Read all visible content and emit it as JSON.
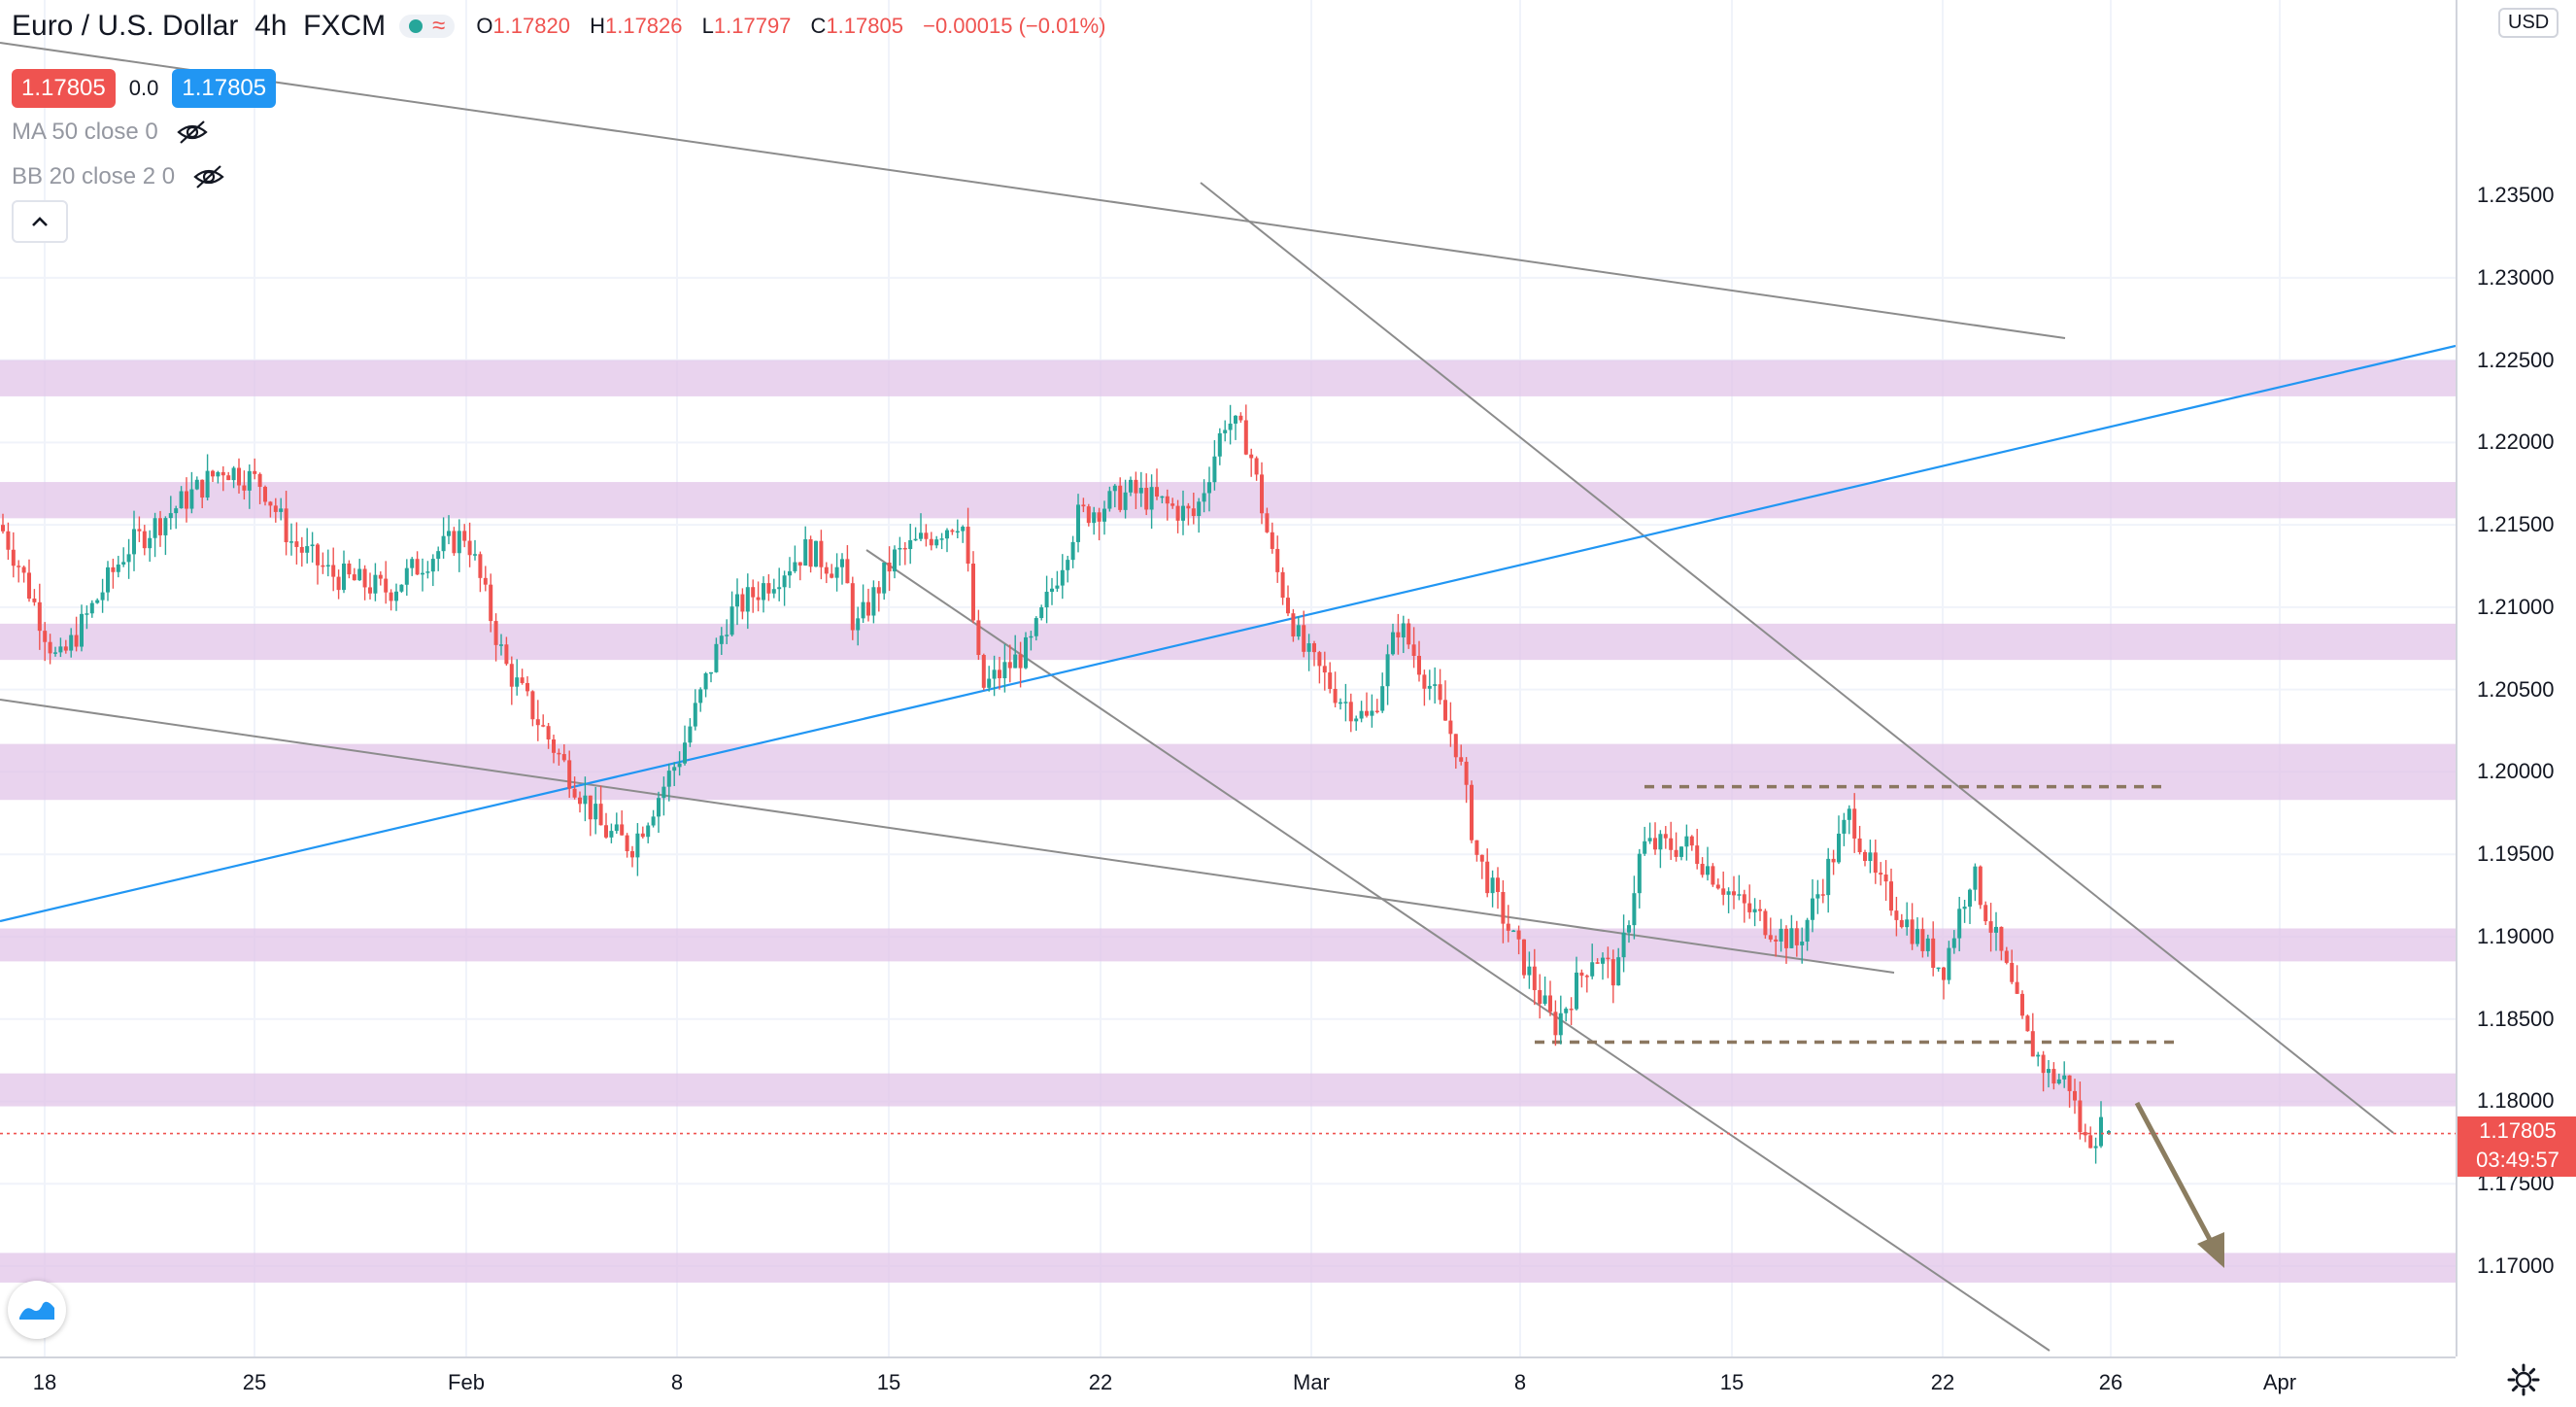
{
  "header": {
    "symbol": "Euro / U.S. Dollar",
    "interval": "4h",
    "exchange": "FXCM",
    "open_label": "O",
    "open": "1.17820",
    "high_label": "H",
    "high": "1.17826",
    "low_label": "L",
    "low": "1.17797",
    "close_label": "C",
    "close": "1.17805",
    "change": "−0.00015 (−0.01%)"
  },
  "trade": {
    "sell_price": "1.17805",
    "spread": "0.0",
    "buy_price": "1.17805"
  },
  "indicators": [
    {
      "label": "MA 50 close 0",
      "visible": false
    },
    {
      "label": "BB 20 close 2 0",
      "visible": false
    }
  ],
  "price_axis": {
    "currency": "USD",
    "top_partial": "1.23500",
    "ticks": [
      "1.23000",
      "1.22500",
      "1.22000",
      "1.21500",
      "1.21000",
      "1.20500",
      "1.20000",
      "1.19500",
      "1.19000",
      "1.18500",
      "1.18000",
      "1.17500",
      "1.17000"
    ],
    "last_price": "1.17805",
    "countdown": "03:49:57"
  },
  "time_axis": {
    "labels": [
      "18",
      "25",
      "Feb",
      "8",
      "15",
      "22",
      "Mar",
      "8",
      "15",
      "22",
      "26",
      "Apr"
    ]
  },
  "colors": {
    "up": "#26a69a",
    "down": "#ef5350",
    "zone": "#e1c4e8",
    "trend": "#8c8c8c",
    "blue_trend": "#2196f3",
    "dashed": "#8b7760",
    "arrow": "#8b7d60"
  },
  "chart_data": {
    "type": "candlestick",
    "ylim": [
      1.1655,
      1.2355
    ],
    "zones": [
      [
        1.2228,
        1.225
      ],
      [
        1.2154,
        1.2176
      ],
      [
        1.2068,
        1.209
      ],
      [
        1.1983,
        1.2017
      ],
      [
        1.1885,
        1.1905
      ],
      [
        1.1797,
        1.1817
      ],
      [
        1.169,
        1.1708
      ]
    ],
    "key_levels": {
      "resistance": 1.1991,
      "support": 1.1836
    },
    "candles": []
  }
}
